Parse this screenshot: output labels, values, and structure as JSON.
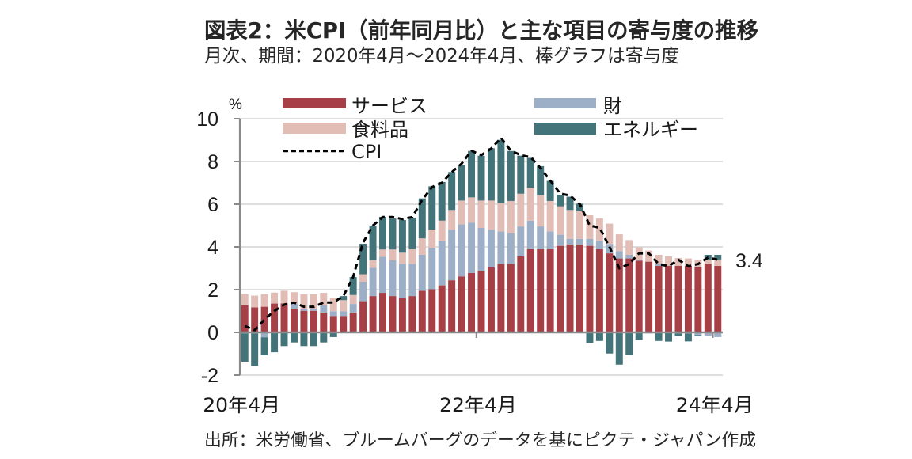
{
  "header": {
    "title": "図表2：米CPI（前年同月比）と主な項目の寄与度の推移",
    "subtitle": "月次、期間：2020年4月～2024年4月、棒グラフは寄与度"
  },
  "footer": {
    "source": "出所：米労働省、ブルームバーグのデータを基にピクテ・ジャパン作成"
  },
  "chart_data": {
    "type": "bar",
    "stacked": true,
    "title": "図表2：米CPI（前年同月比）と主な項目の寄与度の推移",
    "subtitle": "月次、期間：2020年4月～2024年4月、棒グラフは寄与度",
    "xlabel": "",
    "ylabel": "%",
    "ylim": [
      -2,
      10
    ],
    "yticks": [
      -2,
      0,
      2,
      4,
      6,
      8,
      10
    ],
    "grid": true,
    "legend_position": "top",
    "xtick_labels": [
      {
        "index": 0,
        "label": "20年4月"
      },
      {
        "index": 24,
        "label": "22年4月"
      },
      {
        "index": 48,
        "label": "24年4月"
      }
    ],
    "categories": [
      "2020/04",
      "2020/05",
      "2020/06",
      "2020/07",
      "2020/08",
      "2020/09",
      "2020/10",
      "2020/11",
      "2020/12",
      "2021/01",
      "2021/02",
      "2021/03",
      "2021/04",
      "2021/05",
      "2021/06",
      "2021/07",
      "2021/08",
      "2021/09",
      "2021/10",
      "2021/11",
      "2021/12",
      "2022/01",
      "2022/02",
      "2022/03",
      "2022/04",
      "2022/05",
      "2022/06",
      "2022/07",
      "2022/08",
      "2022/09",
      "2022/10",
      "2022/11",
      "2022/12",
      "2023/01",
      "2023/02",
      "2023/03",
      "2023/04",
      "2023/05",
      "2023/06",
      "2023/07",
      "2023/08",
      "2023/09",
      "2023/10",
      "2023/11",
      "2023/12",
      "2024/01",
      "2024/02",
      "2024/03",
      "2024/04"
    ],
    "series": [
      {
        "key": "services",
        "name": "サービス",
        "type": "bar",
        "color": "#A63F46",
        "values": [
          1.27,
          1.17,
          1.2,
          1.35,
          1.36,
          1.11,
          1.01,
          1.01,
          0.93,
          0.77,
          0.77,
          0.93,
          1.46,
          1.7,
          1.85,
          1.7,
          1.6,
          1.7,
          1.95,
          2.02,
          2.2,
          2.44,
          2.62,
          2.78,
          2.88,
          3.04,
          3.21,
          3.21,
          3.56,
          3.89,
          3.89,
          3.89,
          4.05,
          4.12,
          4.12,
          4.05,
          3.89,
          3.7,
          3.46,
          3.46,
          3.36,
          3.31,
          3.11,
          3.11,
          3.11,
          3.11,
          3.04,
          3.21,
          3.11
        ]
      },
      {
        "key": "goods",
        "name": "財",
        "type": "bar",
        "color": "#9DAFC6",
        "values": [
          -0.05,
          -0.05,
          -0.23,
          -0.03,
          0.0,
          0.22,
          0.1,
          0.1,
          0.33,
          0.22,
          0.22,
          0.4,
          0.91,
          1.32,
          1.69,
          1.68,
          1.61,
          1.51,
          1.68,
          1.93,
          2.1,
          2.37,
          2.44,
          2.36,
          2.01,
          1.77,
          1.51,
          1.43,
          1.4,
          1.34,
          1.07,
          0.83,
          0.52,
          0.26,
          0.26,
          0.33,
          0.41,
          0.44,
          0.34,
          0.17,
          0.05,
          -0.05,
          0.1,
          -0.03,
          -0.05,
          -0.05,
          -0.12,
          -0.15,
          -0.22
        ]
      },
      {
        "key": "food",
        "name": "食料品",
        "type": "bar",
        "color": "#E2BDB6",
        "values": [
          0.52,
          0.55,
          0.59,
          0.51,
          0.59,
          0.55,
          0.67,
          0.67,
          0.59,
          0.64,
          0.52,
          0.42,
          0.35,
          0.36,
          0.34,
          0.5,
          0.52,
          0.68,
          0.77,
          0.86,
          0.93,
          0.92,
          1.11,
          1.18,
          1.28,
          1.36,
          1.35,
          1.51,
          1.53,
          1.54,
          1.46,
          1.43,
          1.33,
          1.35,
          1.3,
          1.1,
          1.03,
          0.95,
          0.79,
          0.69,
          0.57,
          0.52,
          0.42,
          0.45,
          0.37,
          0.35,
          0.37,
          0.2,
          0.3
        ]
      },
      {
        "key": "energy",
        "name": "エネルギー",
        "type": "bar",
        "color": "#437479",
        "values": [
          -1.32,
          -1.52,
          -0.84,
          -0.9,
          -0.64,
          -0.47,
          -0.64,
          -0.64,
          -0.47,
          -0.22,
          0.19,
          0.84,
          1.43,
          1.61,
          1.53,
          1.45,
          1.53,
          1.48,
          1.87,
          2.03,
          1.81,
          1.78,
          1.68,
          2.17,
          2.1,
          2.45,
          2.94,
          2.34,
          1.78,
          1.4,
          1.36,
          0.94,
          0.54,
          0.62,
          0.34,
          -0.49,
          -0.4,
          -0.99,
          -1.51,
          -1.06,
          -0.35,
          0.0,
          -0.4,
          -0.4,
          -0.12,
          -0.37,
          -0.05,
          0.22,
          0.22
        ]
      },
      {
        "key": "cpi",
        "name": "CPI",
        "type": "line",
        "style": "dashed",
        "color": "#000000",
        "values": [
          0.3,
          0.1,
          0.6,
          1.0,
          1.3,
          1.4,
          1.2,
          1.2,
          1.4,
          1.4,
          1.7,
          2.6,
          4.2,
          5.0,
          5.4,
          5.4,
          5.3,
          5.4,
          6.2,
          6.8,
          7.0,
          7.5,
          7.9,
          8.5,
          8.3,
          8.6,
          9.1,
          8.5,
          8.3,
          8.2,
          7.7,
          7.1,
          6.5,
          6.4,
          6.0,
          5.0,
          4.9,
          4.0,
          3.0,
          3.2,
          3.7,
          3.7,
          3.2,
          3.1,
          3.4,
          3.1,
          3.2,
          3.5,
          3.4
        ]
      }
    ],
    "annotations": [
      {
        "text": "3.4",
        "target": "CPI latest value (2024/04)"
      }
    ]
  }
}
